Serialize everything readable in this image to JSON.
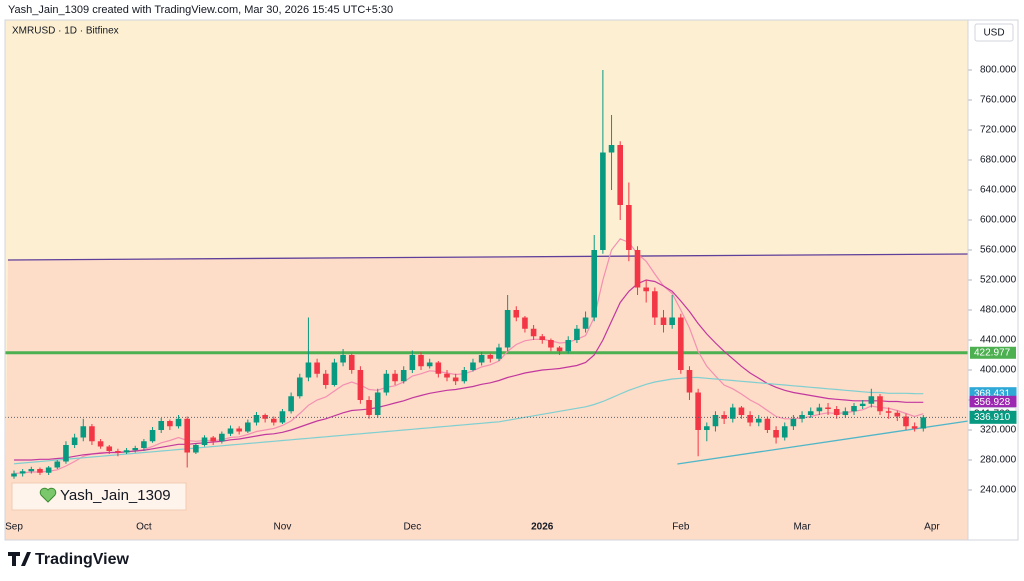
{
  "chart_data": {
    "type": "candlestick",
    "header": "Yash_Jain_1309 created with TradingView.com, Mar 30, 2026 15:45 UTC+5:30",
    "title": "XMRUSD · 1D · Bitfinex",
    "currency": "USD",
    "watermark": "Yash_Jain_1309",
    "brand": "TradingView",
    "up_color": "#089981",
    "down_color": "#f23645",
    "background_above": "#fdf0d2",
    "background_below": "#fddcc8",
    "ylim": [
      206.67,
      866.67
    ],
    "yticks": [
      {
        "value": 240,
        "label": "240.000"
      },
      {
        "value": 280,
        "label": "280.000"
      },
      {
        "value": 320,
        "label": "320.000"
      },
      {
        "value": 360,
        "label": "360.000"
      },
      {
        "value": 400,
        "label": "400.000"
      },
      {
        "value": 440,
        "label": "440.000"
      },
      {
        "value": 480,
        "label": "480.000"
      },
      {
        "value": 520,
        "label": "520.000"
      },
      {
        "value": 560,
        "label": "560.000"
      },
      {
        "value": 600,
        "label": "600.000"
      },
      {
        "value": 640,
        "label": "640.000"
      },
      {
        "value": 680,
        "label": "680.000"
      },
      {
        "value": 720,
        "label": "720.000"
      },
      {
        "value": 760,
        "label": "760.000"
      },
      {
        "value": 800,
        "label": "800.000"
      }
    ],
    "categories": [
      "Sep",
      null,
      null,
      null,
      null,
      null,
      null,
      null,
      null,
      null,
      null,
      null,
      null,
      null,
      null,
      "Oct",
      null,
      null,
      null,
      null,
      null,
      null,
      null,
      null,
      null,
      null,
      null,
      null,
      null,
      null,
      null,
      "Nov",
      null,
      null,
      null,
      null,
      null,
      null,
      null,
      null,
      null,
      null,
      null,
      null,
      null,
      null,
      "Dec",
      null,
      null,
      null,
      null,
      null,
      null,
      null,
      null,
      null,
      null,
      null,
      null,
      null,
      null,
      "2026",
      null,
      null,
      null,
      null,
      null,
      null,
      null,
      null,
      null,
      null,
      null,
      null,
      null,
      null,
      null,
      "Feb",
      null,
      null,
      null,
      null,
      null,
      null,
      null,
      null,
      null,
      null,
      null,
      null,
      null,
      "Mar",
      null,
      null,
      null,
      null,
      null,
      null,
      null,
      null,
      null,
      null,
      null,
      null,
      null,
      null,
      "Apr",
      null
    ],
    "open": [
      258,
      262,
      265,
      268,
      263,
      270,
      278,
      300,
      310,
      325,
      305,
      298,
      292,
      290,
      293,
      296,
      305,
      320,
      332,
      325,
      335,
      290,
      300,
      310,
      305,
      315,
      322,
      318,
      330,
      340,
      335,
      330,
      345,
      365,
      390,
      410,
      395,
      380,
      410,
      420,
      400,
      360,
      340,
      370,
      395,
      385,
      400,
      420,
      405,
      410,
      395,
      390,
      385,
      400,
      410,
      420,
      415,
      430,
      480,
      470,
      455,
      445,
      440,
      430,
      425,
      440,
      455,
      470,
      560,
      690,
      700,
      620,
      560,
      510,
      505,
      470,
      460,
      470,
      400,
      370,
      320,
      325,
      340,
      335,
      350,
      340,
      330,
      335,
      320,
      310,
      325,
      335,
      340,
      345,
      350,
      348,
      340,
      345,
      352,
      355,
      365,
      345,
      343,
      338,
      325,
      322,
      null,
      null
    ],
    "high": [
      266,
      268,
      271,
      270,
      272,
      280,
      305,
      315,
      335,
      328,
      308,
      300,
      295,
      296,
      299,
      308,
      324,
      336,
      334,
      340,
      338,
      302,
      313,
      312,
      318,
      326,
      325,
      334,
      344,
      342,
      338,
      348,
      370,
      395,
      470,
      415,
      400,
      415,
      428,
      422,
      405,
      365,
      375,
      400,
      400,
      405,
      426,
      424,
      415,
      412,
      400,
      395,
      404,
      415,
      424,
      422,
      435,
      500,
      485,
      472,
      460,
      448,
      442,
      432,
      445,
      460,
      478,
      580,
      800,
      740,
      705,
      650,
      565,
      520,
      510,
      480,
      500,
      475,
      405,
      375,
      330,
      345,
      345,
      355,
      352,
      345,
      340,
      338,
      325,
      330,
      340,
      345,
      350,
      355,
      356,
      352,
      350,
      356,
      360,
      375,
      368,
      350,
      346,
      342,
      330,
      340,
      null,
      null
    ],
    "low": [
      255,
      258,
      262,
      260,
      260,
      268,
      275,
      296,
      305,
      300,
      295,
      288,
      285,
      288,
      290,
      292,
      303,
      316,
      320,
      322,
      270,
      288,
      298,
      300,
      302,
      312,
      314,
      316,
      326,
      330,
      326,
      328,
      342,
      362,
      385,
      390,
      375,
      378,
      405,
      395,
      355,
      335,
      336,
      366,
      380,
      382,
      396,
      400,
      402,
      390,
      385,
      380,
      382,
      398,
      406,
      410,
      412,
      425,
      465,
      450,
      440,
      435,
      425,
      420,
      422,
      436,
      450,
      465,
      555,
      640,
      600,
      545,
      500,
      490,
      460,
      450,
      455,
      395,
      360,
      285,
      305,
      318,
      328,
      330,
      335,
      325,
      325,
      316,
      302,
      306,
      320,
      330,
      336,
      340,
      340,
      335,
      336,
      340,
      348,
      350,
      340,
      335,
      332,
      320,
      318,
      318,
      null,
      null
    ],
    "close": [
      262,
      265,
      268,
      263,
      270,
      278,
      300,
      310,
      325,
      305,
      298,
      292,
      290,
      293,
      296,
      305,
      320,
      332,
      325,
      335,
      290,
      300,
      310,
      305,
      315,
      322,
      318,
      330,
      340,
      335,
      330,
      345,
      365,
      390,
      410,
      395,
      380,
      410,
      420,
      400,
      360,
      340,
      370,
      395,
      385,
      400,
      420,
      405,
      410,
      395,
      390,
      385,
      400,
      410,
      420,
      415,
      430,
      480,
      470,
      455,
      445,
      440,
      430,
      425,
      440,
      455,
      470,
      560,
      690,
      700,
      620,
      560,
      510,
      505,
      470,
      460,
      470,
      400,
      370,
      320,
      325,
      340,
      335,
      350,
      340,
      330,
      335,
      320,
      310,
      325,
      335,
      340,
      345,
      350,
      348,
      340,
      345,
      352,
      355,
      365,
      345,
      343,
      338,
      325,
      322,
      336.91,
      null,
      null
    ],
    "series": [
      {
        "color": "#f48fb1",
        "values": [
          262,
          263,
          264,
          264,
          265,
          267,
          272,
          278,
          285,
          288,
          290,
          290,
          290,
          291,
          292,
          294,
          298,
          303,
          306,
          310,
          306,
          305,
          306,
          306,
          307,
          310,
          311,
          314,
          318,
          320,
          322,
          326,
          332,
          342,
          353,
          360,
          364,
          372,
          380,
          384,
          380,
          374,
          373,
          377,
          379,
          384,
          392,
          395,
          399,
          398,
          396,
          394,
          395,
          399,
          404,
          407,
          412,
          425,
          434,
          439,
          441,
          441,
          439,
          436,
          437,
          441,
          446,
          470,
          520,
          560,
          575,
          570,
          555,
          545,
          528,
          512,
          502,
          480,
          456,
          425,
          405,
          392,
          380,
          375,
          368,
          360,
          354,
          346,
          338,
          335,
          335,
          336,
          338,
          341,
          343,
          342,
          343,
          345,
          347,
          352,
          350,
          349,
          346,
          342,
          338,
          341.76,
          null,
          null
        ]
      },
      {
        "color": "#c2389e",
        "values": [
          280,
          280,
          280,
          281,
          281,
          282,
          283,
          285,
          287,
          288,
          289,
          290,
          290,
          291,
          292,
          293,
          295,
          297,
          299,
          301,
          301,
          302,
          303,
          304,
          305,
          307,
          308,
          310,
          312,
          314,
          315,
          317,
          320,
          324,
          328,
          332,
          335,
          339,
          343,
          346,
          347,
          348,
          350,
          353,
          356,
          359,
          363,
          366,
          369,
          371,
          373,
          374,
          376,
          378,
          381,
          383,
          386,
          390,
          393,
          396,
          398,
          400,
          401,
          402,
          404,
          406,
          410,
          420,
          440,
          465,
          490,
          505,
          515,
          520,
          518,
          512,
          505,
          492,
          478,
          462,
          448,
          436,
          425,
          415,
          405,
          396,
          389,
          382,
          377,
          373,
          370,
          368,
          366,
          364,
          362,
          361,
          360,
          359,
          359,
          359,
          359,
          358,
          358,
          357,
          357,
          356.928,
          null,
          null
        ]
      },
      {
        "color": "#7fcfd0",
        "values": [
          275,
          276,
          277,
          278,
          279,
          280,
          281,
          282,
          283,
          284,
          285,
          286,
          287,
          288,
          289,
          290,
          291,
          292,
          293,
          294,
          295,
          296,
          297,
          298,
          299,
          300,
          301,
          302,
          303,
          304,
          305,
          306,
          307,
          308,
          309,
          310,
          311,
          312,
          313,
          314,
          315,
          316,
          317,
          318,
          319,
          320,
          321,
          322,
          323,
          324,
          325,
          326,
          327,
          328,
          329,
          330,
          331,
          333,
          335,
          337,
          339,
          341,
          343,
          345,
          347,
          349,
          351,
          354,
          358,
          363,
          368,
          373,
          377,
          381,
          384,
          386,
          388,
          389,
          390,
          390,
          389,
          388,
          387,
          386,
          385,
          384,
          383,
          382,
          381,
          380,
          379,
          378,
          377,
          376,
          375,
          374,
          373,
          372,
          371,
          370,
          370,
          369,
          369,
          369,
          368.5,
          368.431,
          null,
          null
        ]
      }
    ],
    "trendlines": [
      {
        "color": "#5e3f9a",
        "start": [
          -0.7,
          546.7
        ],
        "end": [
          110.2,
          554.7
        ]
      },
      {
        "color": "#4fb6c8",
        "start": [
          76.6,
          274.7
        ],
        "end": [
          110.2,
          332
        ]
      }
    ],
    "levels": [
      {
        "value": 422.977,
        "label": "422.977",
        "color": "#4caf50"
      }
    ],
    "price_labels": [
      {
        "value": 368.431,
        "label": "368.431",
        "color": "#2fa8d6",
        "text_color": "#ffffff"
      },
      {
        "value": 356.928,
        "label": "356.928",
        "color": "#9c27b0",
        "text_color": "#ffffff"
      },
      {
        "value": 341.76,
        "label": "341.760",
        "color": "#ffffff",
        "text_color": "#131722"
      },
      {
        "value": 336.91,
        "label": "336.910",
        "color": "#089981",
        "text_color": "#ffffff"
      }
    ]
  }
}
